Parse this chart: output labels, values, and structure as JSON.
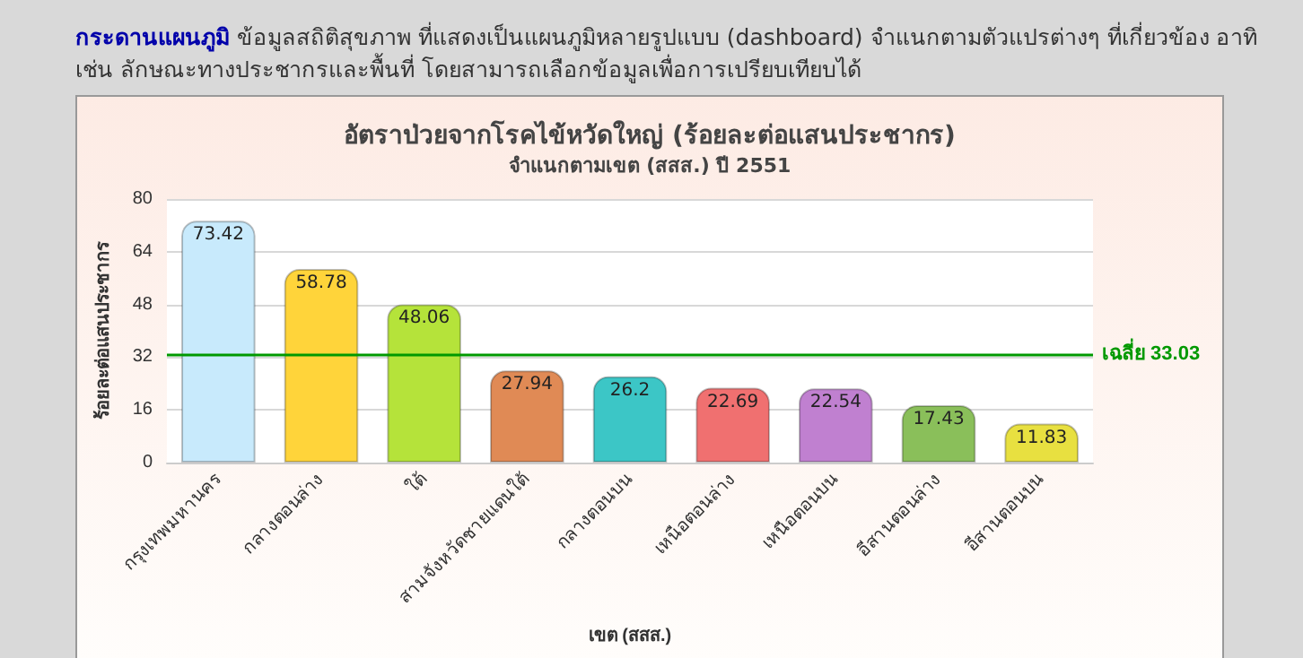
{
  "chart_data": {
    "type": "bar",
    "title": "อัตราป่วยจากโรคไข้หวัดใหญ่ (ร้อยละต่อแสนประชากร)",
    "subtitle": "จำแนกตามเขต (สสส.) ปี 2551",
    "xlabel": "เขต (สสส.)",
    "ylabel": "ร้อยละต่อแสนประชากร",
    "annotations": [
      "กระดานแผนภูมิ",
      "ข้อมูลสถิติสุขภาพ ที่แสดงเป็นแผนภูมิหลายรูปแบบ (dashboard) จำแนกตามตัวแปรต่างๆ ที่เกี่ยวข้อง อาทิ เช่น ลักษณะทางประชากรและพื้นที่ โดยสามารถเลือกข้อมูลเพื่อการเปรียบเทียบได้"
    ],
    "categories": [
      "กรุงเทพมหานคร",
      "กลางตอนล่าง",
      "ใต้",
      "สามจังหวัดชายแดนใต้",
      "กลางตอนบน",
      "เหนือตอนล่าง",
      "เหนือตอนบน",
      "อีสานตอนล่าง",
      "อีสานตอนบน"
    ],
    "values": [
      73.42,
      58.78,
      48.06,
      27.94,
      26.2,
      22.69,
      22.54,
      17.43,
      11.83
    ],
    "colors": [
      "#c8eafc",
      "#ffd43a",
      "#b5e33a",
      "#e08a55",
      "#3cc6c6",
      "#f07070",
      "#c080d0",
      "#8abf5a",
      "#e8e040"
    ],
    "ylim": [
      0,
      80
    ],
    "yticks": [
      0,
      16,
      32,
      48,
      64,
      80
    ],
    "grid": "y",
    "data_labels": true,
    "ref_lines": [
      {
        "axis": "y",
        "value": 33.03,
        "label": "เฉลี่ย 33.03",
        "color": "#009900"
      }
    ]
  }
}
